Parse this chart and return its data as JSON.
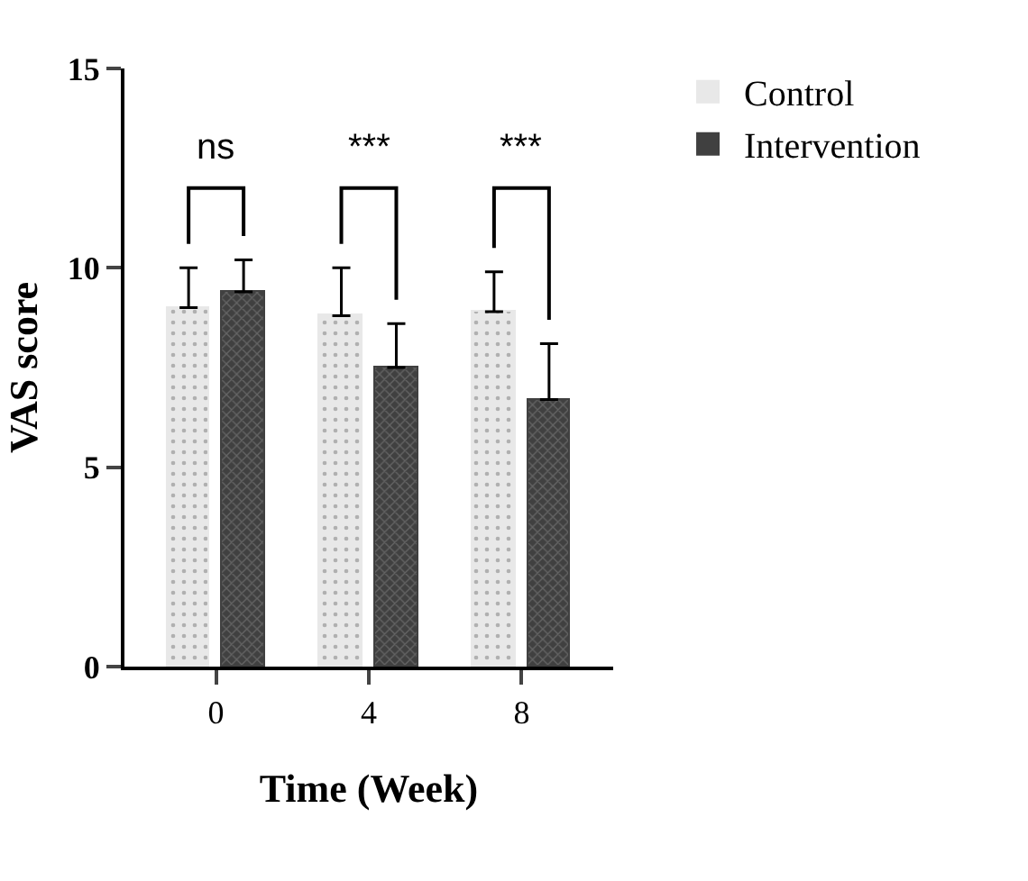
{
  "chart_data": {
    "type": "bar",
    "xlabel": "Time (Week)",
    "ylabel": "VAS score",
    "categories": [
      "0",
      "4",
      "8"
    ],
    "series": [
      {
        "name": "Control",
        "color": "#e8e8e8",
        "values": [
          9.0,
          8.8,
          8.9
        ],
        "errors": [
          [
            9.0,
            10.0
          ],
          [
            8.8,
            10.0
          ],
          [
            8.9,
            9.9
          ]
        ]
      },
      {
        "name": "Intervention",
        "color": "#404040",
        "values": [
          9.4,
          7.5,
          6.7
        ],
        "errors": [
          [
            9.4,
            10.2
          ],
          [
            7.5,
            8.6
          ],
          [
            6.7,
            8.1
          ]
        ]
      }
    ],
    "ylim": [
      0,
      15
    ],
    "yticks": [
      0,
      5,
      10,
      15
    ],
    "grid": false,
    "legend": "top right",
    "annotations": [
      "ns",
      "***",
      "***"
    ]
  }
}
